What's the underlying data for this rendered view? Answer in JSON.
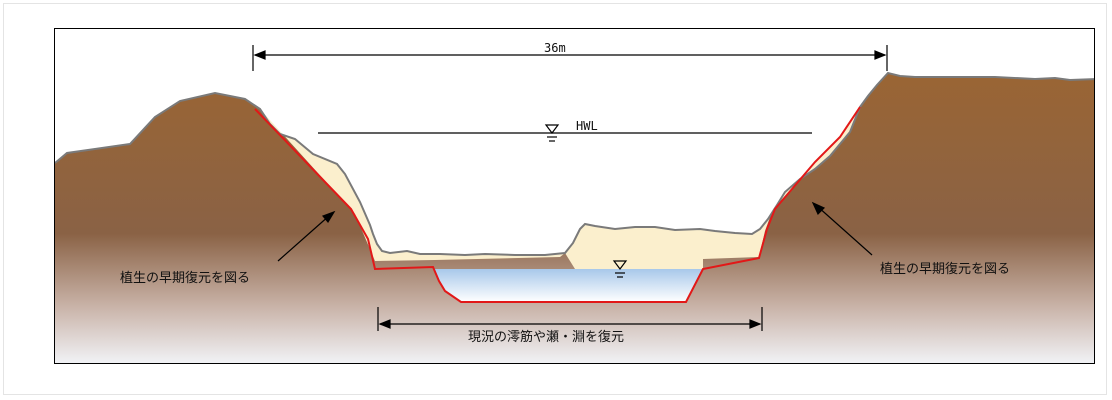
{
  "dimension": {
    "width_label": "36m"
  },
  "water_level": {
    "hwl_label": "HWL"
  },
  "annotations": {
    "left_bank": "植生の早期復元を図る",
    "right_bank": "植生の早期復元を図る",
    "channel": "現況の澪筋や瀬・淵を復元"
  },
  "colors": {
    "soil_top": "#9a6534",
    "soil_bottom": "#f2f4f8",
    "fill_sediment": "#fbefcd",
    "water": "#a8c8ea",
    "excavation_line": "#e21818",
    "ground_outline": "#7a7a7a"
  }
}
